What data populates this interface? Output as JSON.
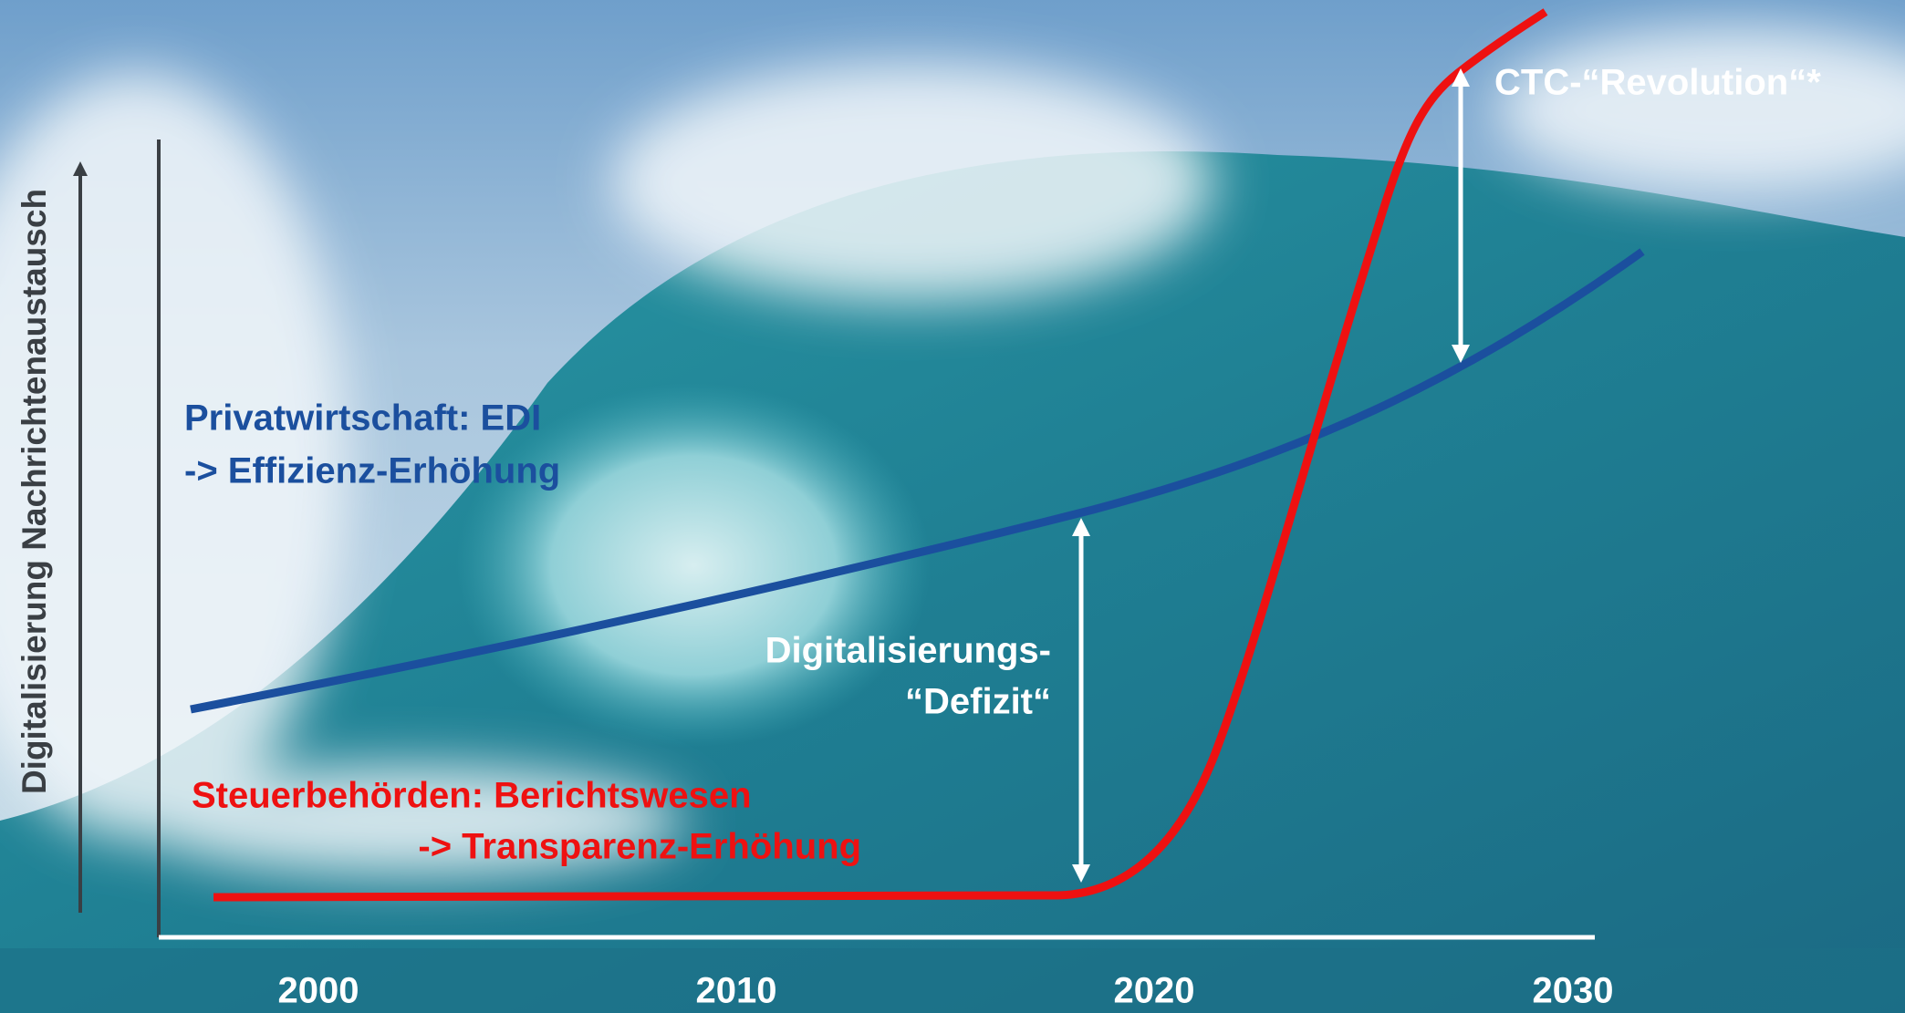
{
  "axis": {
    "y_label": "Digitalisierung Nachrichtenaustausch",
    "x_labels": [
      "2000",
      "2010",
      "2020",
      "2030"
    ]
  },
  "annotations": {
    "private": [
      "Privatwirtschaft: EDI",
      "-> Effizienz-Erhöhung"
    ],
    "tax": [
      "Steuerbehörden: Berichtswesen",
      "-> Transparenz-Erhöhung"
    ],
    "deficit": [
      "Digitalisierungs-",
      "“Defizit“"
    ],
    "revolution": "CTC-“Revolution“*"
  }
}
